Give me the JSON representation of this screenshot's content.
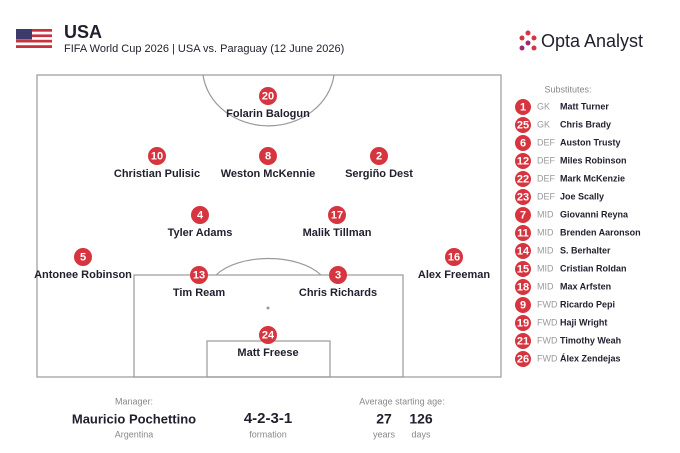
{
  "header": {
    "team": "USA",
    "subtitle": "FIFA World Cup 2026 | USA vs. Paraguay (12 June 2026)",
    "brand": "Opta Analyst"
  },
  "players": [
    {
      "number": 20,
      "name": "Folarin Balogun"
    },
    {
      "number": 10,
      "name": "Christian Pulisic"
    },
    {
      "number": 8,
      "name": "Weston McKennie"
    },
    {
      "number": 2,
      "name": "Sergiño Dest"
    },
    {
      "number": 4,
      "name": "Tyler Adams"
    },
    {
      "number": 17,
      "name": "Malik Tillman"
    },
    {
      "number": 5,
      "name": "Antonee Robinson"
    },
    {
      "number": 16,
      "name": "Alex Freeman"
    },
    {
      "number": 13,
      "name": "Tim Ream"
    },
    {
      "number": 3,
      "name": "Chris Richards"
    },
    {
      "number": 24,
      "name": "Matt Freese"
    }
  ],
  "substitutes": {
    "title": "Substitutes:",
    "list": [
      {
        "number": 1,
        "position": "GK",
        "name": "Matt Turner"
      },
      {
        "number": 25,
        "position": "GK",
        "name": "Chris Brady"
      },
      {
        "number": 6,
        "position": "DEF",
        "name": "Auston Trusty"
      },
      {
        "number": 12,
        "position": "DEF",
        "name": "Miles Robinson"
      },
      {
        "number": 22,
        "position": "DEF",
        "name": "Mark McKenzie"
      },
      {
        "number": 23,
        "position": "DEF",
        "name": "Joe Scally"
      },
      {
        "number": 7,
        "position": "MID",
        "name": "Giovanni Reyna"
      },
      {
        "number": 11,
        "position": "MID",
        "name": "Brenden Aaronson"
      },
      {
        "number": 14,
        "position": "MID",
        "name": "S. Berhalter"
      },
      {
        "number": 15,
        "position": "MID",
        "name": "Cristian Roldan"
      },
      {
        "number": 18,
        "position": "MID",
        "name": "Max Arfsten"
      },
      {
        "number": 9,
        "position": "FWD",
        "name": "Ricardo Pepi"
      },
      {
        "number": 19,
        "position": "FWD",
        "name": "Haji Wright"
      },
      {
        "number": 21,
        "position": "FWD",
        "name": "Timothy Weah"
      },
      {
        "number": 26,
        "position": "FWD",
        "name": "Álex Zendejas"
      }
    ]
  },
  "footer": {
    "manager_label": "Manager:",
    "manager": "Mauricio Pochettino",
    "manager_country": "Argentina",
    "formation": "4-2-3-1",
    "formation_label": "formation",
    "age_label": "Average starting age:",
    "age_years": 27,
    "years_label": "years",
    "age_days": 126,
    "days_label": "days"
  }
}
